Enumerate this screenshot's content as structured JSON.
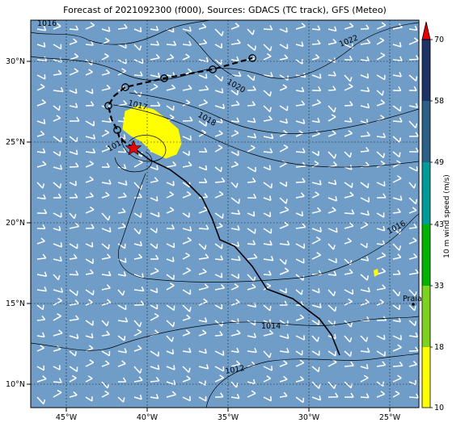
{
  "title": "Forecast of 2021092300 (f000), Sources: GDACS (TC track), GFS (Meteo)",
  "map": {
    "lon_range": [
      -47.2,
      -23.2
    ],
    "lat_range": [
      8.5,
      32.5
    ],
    "x_ticks": [
      "45°W",
      "40°W",
      "35°W",
      "30°W",
      "25°W"
    ],
    "y_ticks": [
      "30°N",
      "25°N",
      "20°N",
      "15°N",
      "10°N"
    ],
    "ocean_color": "#6f9dc8",
    "place_label": "Praia",
    "contour_labels": [
      "1016",
      "1022",
      "1020",
      "1017",
      "1018",
      "1014",
      "1016",
      "1014",
      "1012"
    ]
  },
  "colorbar": {
    "label": "10 m wind speed (m/s)",
    "ticks": [
      "70",
      "58",
      "49",
      "43",
      "33",
      "18",
      "10"
    ],
    "colors": [
      "#ffff00",
      "#7ed321",
      "#00b300",
      "#009a9a",
      "#2c5f85",
      "#1e3366"
    ],
    "extend_color": "#e60000"
  },
  "track": {
    "past_line": "solid black",
    "forecast_line": "dashed black",
    "current_marker": "red-star-icon"
  }
}
